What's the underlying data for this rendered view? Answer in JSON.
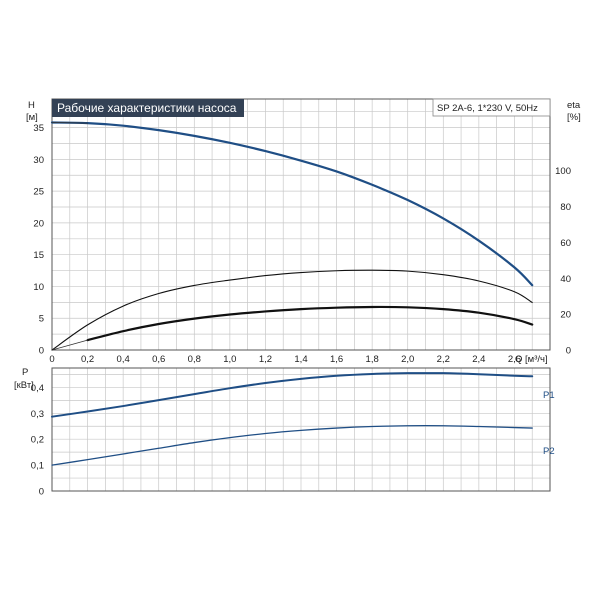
{
  "title": "Рабочие характеристики насоса",
  "model": "SP 2A-6, 1*230 V, 50Hz",
  "colors": {
    "curve": "#1f4e85",
    "black": "#111111",
    "grid": "#c8c8c8",
    "title_bg": "#334155"
  },
  "chart_data": [
    {
      "type": "line",
      "title": "Рабочие характеристики насоса",
      "ylabel": [
        "H",
        "[м]"
      ],
      "y2label": [
        "eta",
        "[%]"
      ],
      "xlabel": "Q [м³/ч]",
      "xlim": [
        0,
        2.8
      ],
      "ylim": [
        0,
        39.5
      ],
      "y2lim": [
        0,
        140
      ],
      "xticks": [
        "0",
        "0,2",
        "0,4",
        "0,6",
        "0,8",
        "1,0",
        "1,2",
        "1,4",
        "1,6",
        "1,8",
        "2,0",
        "2,2",
        "2,4",
        "2,6",
        "2,8"
      ],
      "yticks": [
        "0",
        "5",
        "10",
        "15",
        "20",
        "25",
        "30",
        "35"
      ],
      "y2ticks": [
        "0",
        "20",
        "40",
        "60",
        "80",
        "100"
      ],
      "grid": true,
      "series": [
        {
          "kind": "head",
          "style": "blue-thick",
          "x": [
            0,
            0.2,
            0.4,
            0.6,
            0.8,
            1.0,
            1.2,
            1.4,
            1.6,
            1.8,
            2.0,
            2.2,
            2.4,
            2.6,
            2.7
          ],
          "y": [
            35.8,
            35.7,
            35.3,
            34.6,
            33.7,
            32.6,
            31.3,
            29.8,
            28.1,
            26.0,
            23.6,
            20.7,
            17.2,
            13.0,
            10.2
          ]
        },
        {
          "kind": "head-thin",
          "style": "thin",
          "x": [
            0,
            0.2
          ],
          "y": [
            35.8,
            35.7
          ]
        },
        {
          "kind": "eta",
          "axis": "y2",
          "style": "black-thin",
          "x": [
            0,
            0.2,
            0.4,
            0.6,
            0.8,
            1.0,
            1.2,
            1.4,
            1.6,
            1.8,
            2.0,
            2.2,
            2.4,
            2.6,
            2.7
          ],
          "y": [
            0,
            14,
            24.5,
            31.5,
            36,
            39,
            41.5,
            43.2,
            44.2,
            44.5,
            44,
            42,
            38.5,
            32.5,
            26.5
          ]
        },
        {
          "kind": "eta-total",
          "axis": "y2",
          "style": "black-thick",
          "x": [
            0.2,
            0.4,
            0.6,
            0.8,
            1.0,
            1.2,
            1.4,
            1.6,
            1.8,
            2.0,
            2.2,
            2.4,
            2.6,
            2.7
          ],
          "y": [
            5.5,
            10.5,
            14.5,
            17.5,
            19.8,
            21.5,
            22.8,
            23.6,
            24,
            23.8,
            22.8,
            20.8,
            17.2,
            14.2
          ]
        }
      ]
    },
    {
      "type": "line",
      "ylabel": [
        "P",
        "[кВт]"
      ],
      "xlim": [
        0,
        2.8
      ],
      "ylim": [
        0,
        0.475
      ],
      "yticks": [
        "0",
        "0,1",
        "0,2",
        "0,3",
        "0,4"
      ],
      "grid": true,
      "series": [
        {
          "name": "P1",
          "style": "blue",
          "x": [
            0,
            0.2,
            0.4,
            0.6,
            0.8,
            1.0,
            1.2,
            1.4,
            1.6,
            1.8,
            2.0,
            2.2,
            2.4,
            2.6,
            2.7
          ],
          "y": [
            0.287,
            0.307,
            0.328,
            0.351,
            0.374,
            0.397,
            0.417,
            0.433,
            0.445,
            0.452,
            0.455,
            0.455,
            0.451,
            0.445,
            0.443
          ]
        },
        {
          "name": "P2",
          "style": "blue-thin",
          "x": [
            0,
            0.2,
            0.4,
            0.6,
            0.8,
            1.0,
            1.2,
            1.4,
            1.6,
            1.8,
            2.0,
            2.2,
            2.4,
            2.6,
            2.7
          ],
          "y": [
            0.1,
            0.121,
            0.143,
            0.165,
            0.187,
            0.206,
            0.222,
            0.234,
            0.243,
            0.249,
            0.252,
            0.252,
            0.249,
            0.245,
            0.243
          ]
        }
      ]
    }
  ]
}
